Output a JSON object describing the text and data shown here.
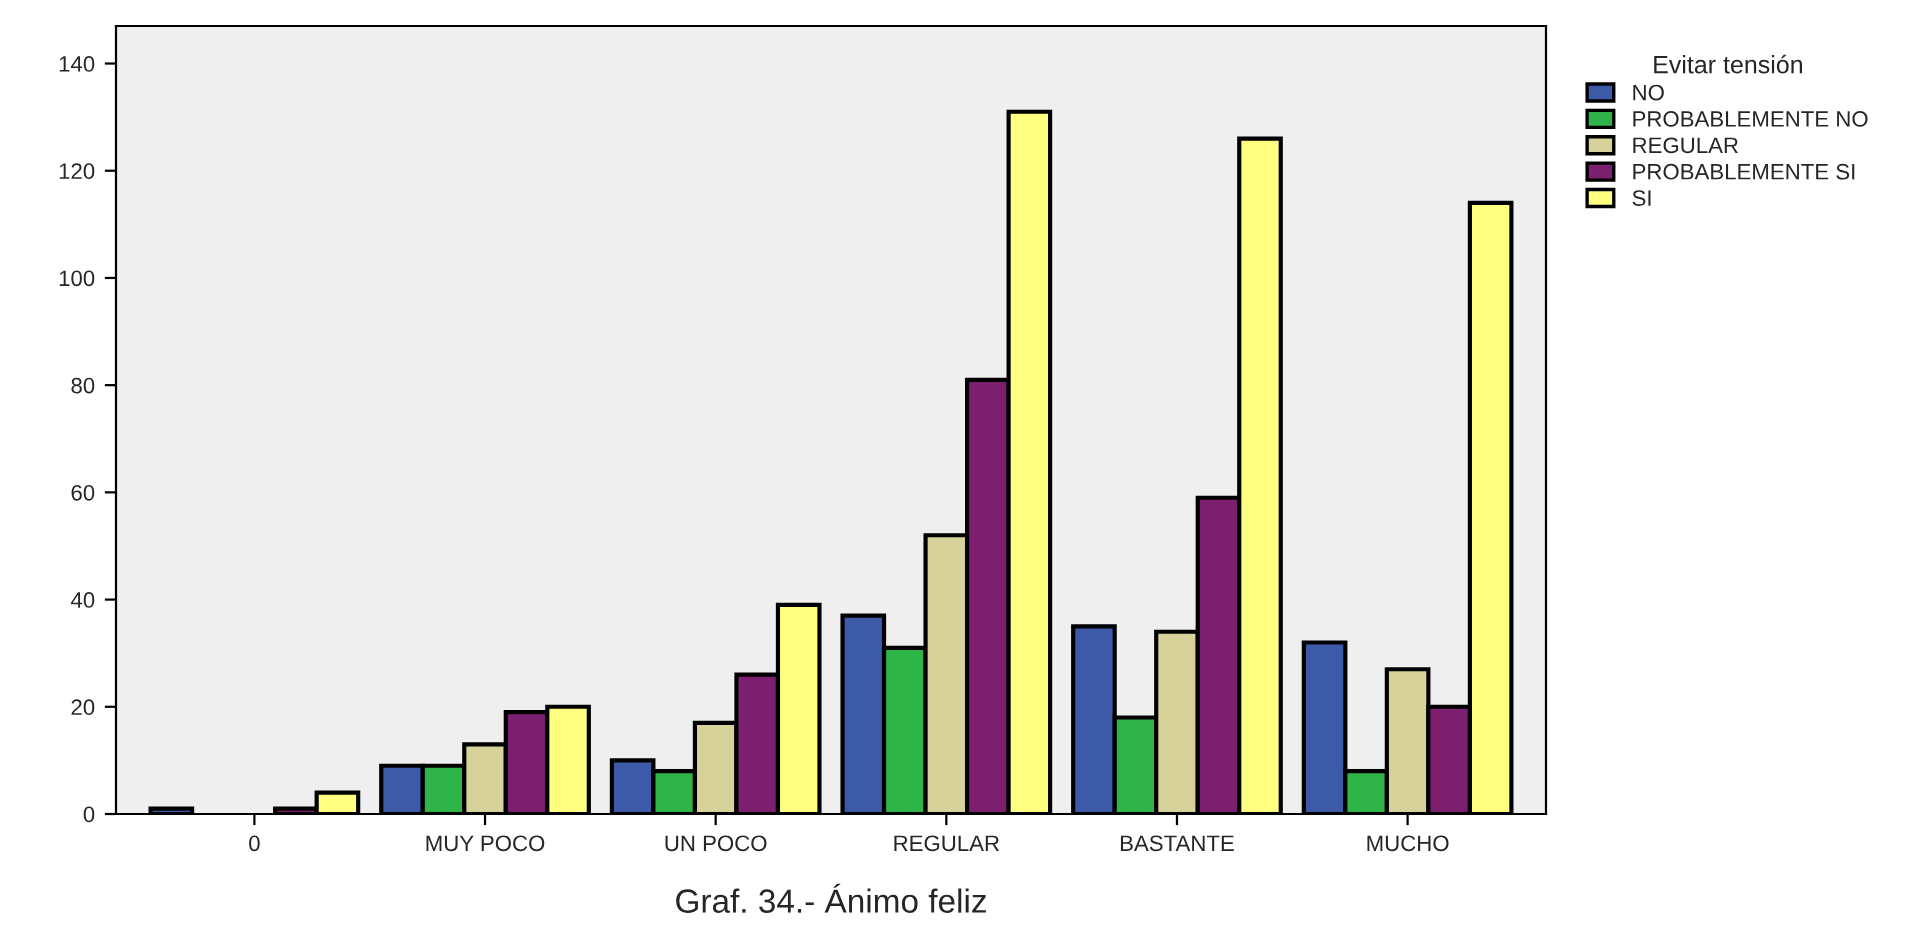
{
  "chart_data": {
    "type": "bar",
    "title": "Graf. 34.- Ánimo feliz",
    "legend_title": "Evitar tensión",
    "categories": [
      "0",
      "MUY POCO",
      "UN POCO",
      "REGULAR",
      "BASTANTE",
      "MUCHO"
    ],
    "series": [
      {
        "name": "NO",
        "color": "#3c5aa8",
        "values": [
          1,
          9,
          10,
          37,
          35,
          32
        ]
      },
      {
        "name": "PROBABLEMENTE NO",
        "color": "#2fb44a",
        "values": [
          null,
          9,
          8,
          31,
          18,
          8
        ]
      },
      {
        "name": "REGULAR",
        "color": "#d6d29a",
        "values": [
          null,
          13,
          17,
          52,
          34,
          27
        ]
      },
      {
        "name": "PROBABLEMENTE SI",
        "color": "#7c1f6e",
        "values": [
          1,
          19,
          26,
          81,
          59,
          20
        ]
      },
      {
        "name": "SI",
        "color": "#ffff80",
        "values": [
          4,
          20,
          39,
          131,
          126,
          114
        ]
      }
    ],
    "ylim": [
      0,
      147
    ],
    "yticks": [
      0,
      20,
      40,
      60,
      80,
      100,
      120,
      140
    ],
    "grid": false,
    "legend": "top right"
  }
}
